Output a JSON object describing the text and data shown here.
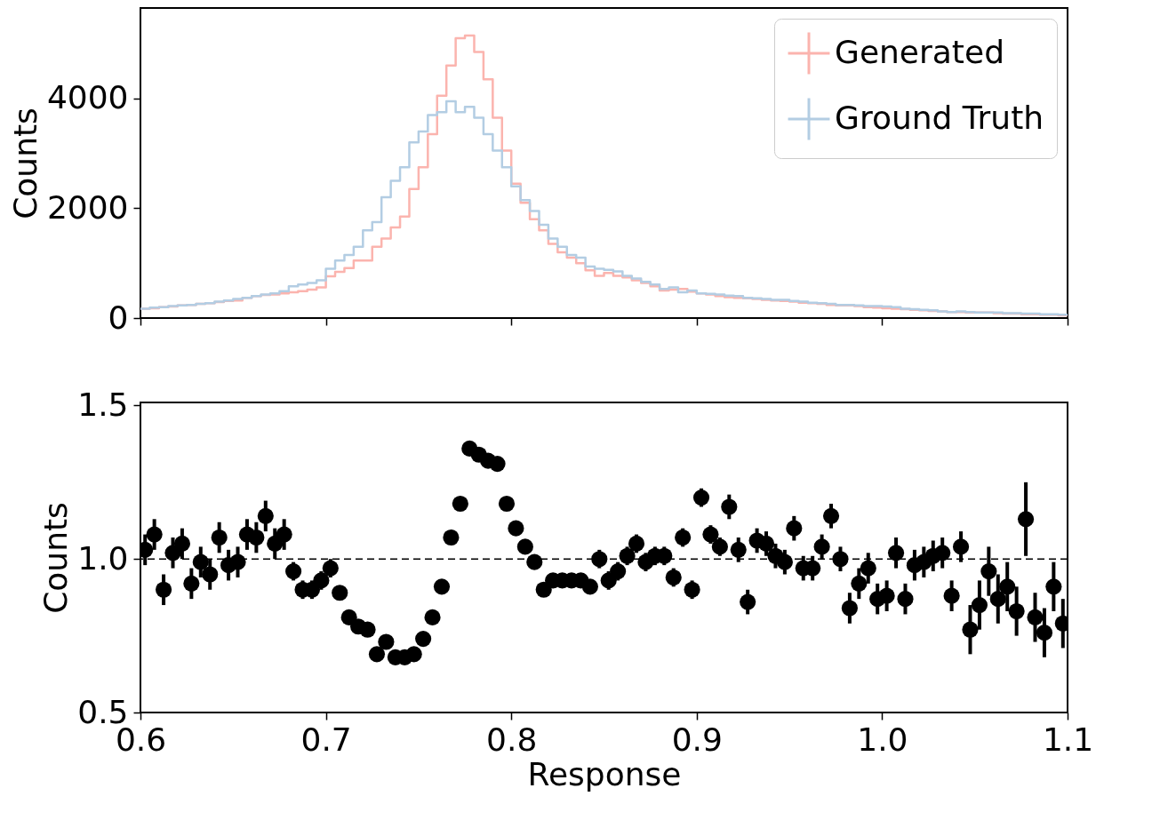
{
  "chart_data": [
    {
      "type": "histogram",
      "ylabel": "Counts",
      "xlim": [
        0.6,
        1.1
      ],
      "ylim": [
        0,
        5650
      ],
      "xticks": [
        0.6,
        0.7,
        0.8,
        0.9,
        1.0,
        1.1
      ],
      "yticks": [
        0,
        2000,
        4000
      ],
      "tick_labels": "y",
      "legend": "top right",
      "bins": [
        0.6,
        0.605,
        0.61,
        0.615,
        0.62,
        0.625,
        0.63,
        0.635,
        0.64,
        0.645,
        0.65,
        0.655,
        0.66,
        0.665,
        0.67,
        0.675,
        0.68,
        0.685,
        0.69,
        0.695,
        0.7,
        0.705,
        0.71,
        0.715,
        0.72,
        0.725,
        0.73,
        0.735,
        0.74,
        0.745,
        0.75,
        0.755,
        0.76,
        0.765,
        0.77,
        0.775,
        0.78,
        0.785,
        0.79,
        0.795,
        0.8,
        0.805,
        0.81,
        0.815,
        0.82,
        0.825,
        0.83,
        0.835,
        0.84,
        0.845,
        0.85,
        0.855,
        0.86,
        0.865,
        0.87,
        0.875,
        0.88,
        0.885,
        0.89,
        0.895,
        0.9,
        0.905,
        0.91,
        0.915,
        0.92,
        0.925,
        0.93,
        0.935,
        0.94,
        0.945,
        0.95,
        0.955,
        0.96,
        0.965,
        0.97,
        0.975,
        0.98,
        0.985,
        0.99,
        0.995,
        1.0,
        1.005,
        1.01,
        1.015,
        1.02,
        1.025,
        1.03,
        1.035,
        1.04,
        1.045,
        1.05,
        1.055,
        1.06,
        1.065,
        1.07,
        1.075,
        1.08,
        1.085,
        1.09,
        1.095,
        1.1
      ],
      "series": [
        {
          "name": "Generated",
          "color": "#fbb4ae",
          "values": [
            170,
            180,
            200,
            210,
            230,
            240,
            260,
            270,
            290,
            310,
            320,
            370,
            400,
            420,
            430,
            450,
            470,
            490,
            520,
            560,
            760,
            840,
            910,
            1050,
            1050,
            1300,
            1450,
            1650,
            1850,
            2350,
            2750,
            3350,
            4050,
            4600,
            5100,
            5150,
            4850,
            4350,
            3650,
            3050,
            2450,
            2100,
            1800,
            1600,
            1350,
            1200,
            1100,
            1000,
            870,
            770,
            820,
            770,
            740,
            690,
            640,
            580,
            500,
            520,
            530,
            480,
            450,
            430,
            400,
            380,
            370,
            360,
            350,
            330,
            320,
            310,
            300,
            280,
            270,
            260,
            240,
            230,
            230,
            220,
            200,
            190,
            180,
            170,
            160,
            150,
            140,
            130,
            120,
            110,
            110,
            100,
            100,
            100,
            90,
            80,
            80,
            70,
            70,
            60,
            60,
            50
          ]
        },
        {
          "name": "Ground Truth",
          "color": "#b3cde3",
          "values": [
            170,
            190,
            200,
            220,
            230,
            240,
            260,
            270,
            300,
            320,
            350,
            370,
            400,
            430,
            450,
            490,
            580,
            610,
            640,
            690,
            900,
            1050,
            1150,
            1300,
            1600,
            1750,
            2200,
            2500,
            2750,
            3200,
            3400,
            3700,
            3750,
            3950,
            3750,
            3850,
            3650,
            3350,
            3050,
            2750,
            2400,
            2150,
            1950,
            1700,
            1450,
            1300,
            1150,
            1100,
            940,
            900,
            880,
            850,
            770,
            720,
            660,
            610,
            530,
            560,
            470,
            500,
            450,
            440,
            430,
            410,
            400,
            370,
            360,
            350,
            330,
            330,
            310,
            300,
            280,
            270,
            260,
            240,
            240,
            230,
            220,
            220,
            210,
            200,
            170,
            160,
            150,
            140,
            120,
            110,
            120,
            110,
            100,
            100,
            100,
            90,
            90,
            80,
            80,
            70,
            70,
            60
          ]
        }
      ]
    },
    {
      "type": "scatter",
      "xlabel": "Response",
      "ylabel": "Counts",
      "xlim": [
        0.6,
        1.1
      ],
      "ylim": [
        0.5,
        1.51
      ],
      "xticks": [
        0.6,
        0.7,
        0.8,
        0.9,
        {
          "value": 1,
          "label": "1.0"
        },
        1.1
      ],
      "yticks": [
        0.5,
        {
          "value": 1,
          "label": "1.0"
        },
        1.5
      ],
      "marker": "circle",
      "ref_lines": [
        {
          "axis": "y",
          "value": 1.0,
          "color": "#000000",
          "line_style": "dashed"
        }
      ],
      "series": [
        {
          "color": "#000000",
          "x": [
            0.6025,
            0.6075,
            0.6125,
            0.6175,
            0.6225,
            0.6275,
            0.6325,
            0.6375,
            0.6425,
            0.6475,
            0.6525,
            0.6575,
            0.6625,
            0.6675,
            0.6725,
            0.6775,
            0.6825,
            0.6875,
            0.6925,
            0.6975,
            0.7025,
            0.7075,
            0.7125,
            0.7175,
            0.7225,
            0.7275,
            0.7325,
            0.7375,
            0.7425,
            0.7475,
            0.7525,
            0.7575,
            0.7625,
            0.7675,
            0.7725,
            0.7775,
            0.7825,
            0.7875,
            0.7925,
            0.7975,
            0.8025,
            0.8075,
            0.8125,
            0.8175,
            0.8225,
            0.8275,
            0.8325,
            0.8375,
            0.8425,
            0.8475,
            0.8525,
            0.8575,
            0.8625,
            0.8675,
            0.8725,
            0.8775,
            0.8825,
            0.8875,
            0.8925,
            0.8975,
            0.9025,
            0.9075,
            0.9125,
            0.9175,
            0.9225,
            0.9275,
            0.9325,
            0.9375,
            0.9425,
            0.9475,
            0.9525,
            0.9575,
            0.9625,
            0.9675,
            0.9725,
            0.9775,
            0.9825,
            0.9875,
            0.9925,
            0.9975,
            1.0025,
            1.0075,
            1.0125,
            1.0175,
            1.0225,
            1.0275,
            1.0325,
            1.0375,
            1.0425,
            1.0475,
            1.0525,
            1.0575,
            1.0625,
            1.0675,
            1.0725,
            1.0775,
            1.0825,
            1.0875,
            1.0925,
            1.0975
          ],
          "values": [
            1.03,
            1.08,
            0.9,
            1.02,
            1.05,
            0.92,
            0.99,
            0.95,
            1.07,
            0.98,
            0.99,
            1.08,
            1.07,
            1.14,
            1.05,
            1.08,
            0.96,
            0.9,
            0.9,
            0.93,
            0.97,
            0.89,
            0.81,
            0.78,
            0.77,
            0.69,
            0.73,
            0.68,
            0.68,
            0.69,
            0.74,
            0.81,
            0.91,
            1.07,
            1.18,
            1.36,
            1.34,
            1.32,
            1.31,
            1.18,
            1.1,
            1.04,
            0.99,
            0.9,
            0.93,
            0.93,
            0.93,
            0.93,
            0.91,
            1.0,
            0.93,
            0.96,
            1.01,
            1.05,
            0.99,
            1.01,
            1.01,
            0.94,
            1.07,
            0.9,
            1.2,
            1.08,
            1.04,
            1.17,
            1.03,
            0.86,
            1.06,
            1.05,
            1.01,
            0.99,
            1.1,
            0.97,
            0.97,
            1.04,
            1.14,
            1.0,
            0.84,
            0.92,
            0.97,
            0.87,
            0.88,
            1.02,
            0.87,
            0.98,
            0.99,
            1.01,
            1.02,
            0.88,
            1.04,
            0.77,
            0.85,
            0.96,
            0.87,
            0.91,
            0.83,
            1.13,
            0.81,
            0.76,
            0.91,
            0.79
          ],
          "errors": [
            0.05,
            0.05,
            0.05,
            0.05,
            0.05,
            0.05,
            0.05,
            0.05,
            0.05,
            0.05,
            0.05,
            0.05,
            0.05,
            0.05,
            0.05,
            0.05,
            0.03,
            0.03,
            0.03,
            0.03,
            0.03,
            0.01,
            0.01,
            0.01,
            0.01,
            0.01,
            0.01,
            0.01,
            0.01,
            0.01,
            0.01,
            0.01,
            0.01,
            0.01,
            0.01,
            0.01,
            0.01,
            0.01,
            0.01,
            0.01,
            0.01,
            0.01,
            0.01,
            0.01,
            0.01,
            0.01,
            0.01,
            0.01,
            0.01,
            0.03,
            0.03,
            0.03,
            0.03,
            0.03,
            0.03,
            0.03,
            0.03,
            0.03,
            0.03,
            0.03,
            0.03,
            0.03,
            0.03,
            0.04,
            0.04,
            0.04,
            0.04,
            0.04,
            0.04,
            0.04,
            0.04,
            0.04,
            0.04,
            0.04,
            0.04,
            0.04,
            0.05,
            0.05,
            0.05,
            0.05,
            0.05,
            0.05,
            0.05,
            0.05,
            0.05,
            0.05,
            0.05,
            0.05,
            0.05,
            0.08,
            0.08,
            0.08,
            0.08,
            0.08,
            0.08,
            0.12,
            0.08,
            0.08,
            0.08,
            0.08
          ]
        }
      ]
    }
  ]
}
